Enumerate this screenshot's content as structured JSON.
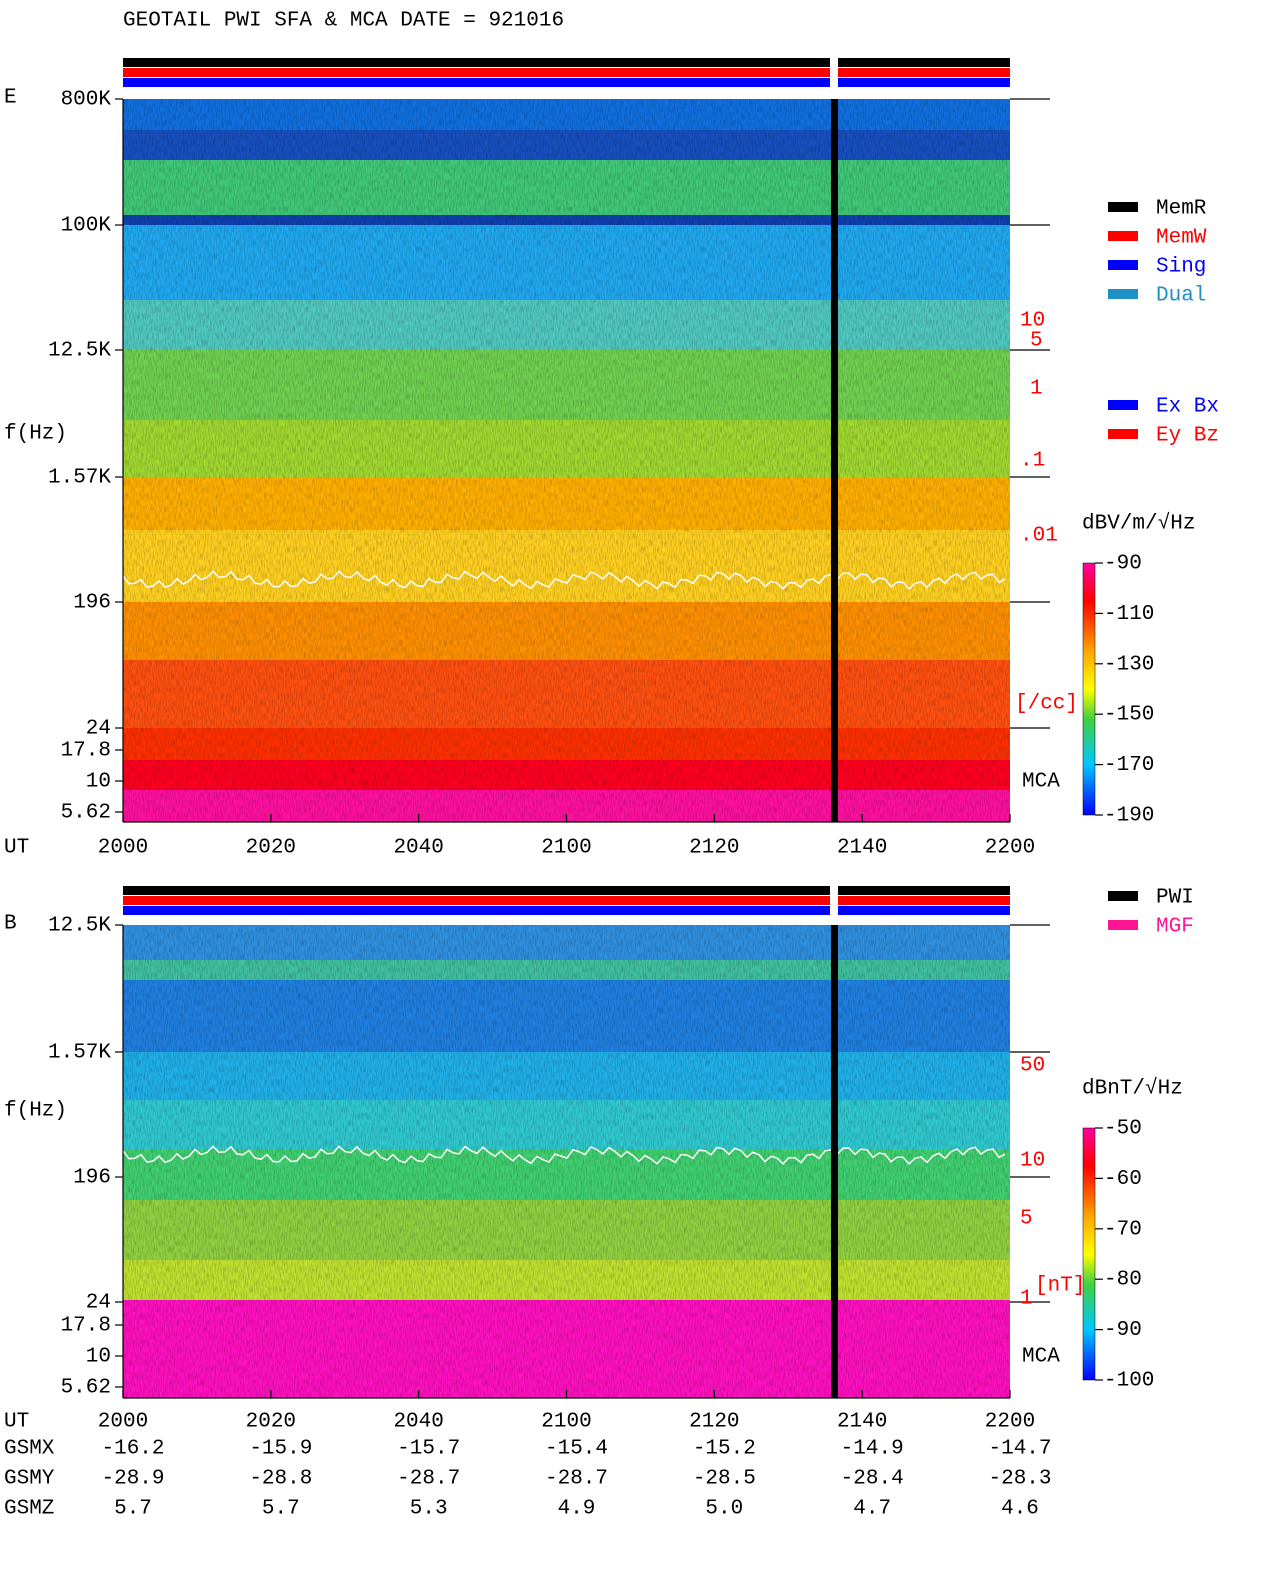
{
  "title": "GEOTAIL  PWI SFA & MCA   DATE = 921016",
  "chart_data": [
    {
      "type": "spectrogram",
      "panel_label": "E",
      "y_label": "f(Hz)",
      "x_label": "UT",
      "x_categories": [
        "2000",
        "2020",
        "2040",
        "2100",
        "2120",
        "2140",
        "2200"
      ],
      "y_tick_labels": [
        "800K",
        "100K",
        "12.5K",
        "1.57K",
        "196",
        "24",
        "17.8",
        "10",
        "5.62"
      ],
      "colorbar_label": "dBV/m/√Hz",
      "colorbar_lim": [
        -90,
        -190
      ],
      "colorbar_ticks": [
        -90,
        -110,
        -130,
        -150,
        -170,
        -190
      ],
      "right_scale_labels": [
        "10",
        "5",
        "1",
        ".1",
        ".01",
        "[/cc]"
      ],
      "mca_label": "MCA",
      "legends": [
        [
          {
            "name": "MemR",
            "color": "#000000"
          },
          {
            "name": "MemW",
            "color": "#ff0000"
          },
          {
            "name": "Sing",
            "color": "#0000ff"
          },
          {
            "name": "Dual",
            "color": "#1e90c8"
          }
        ],
        [
          {
            "name": "Ex Bx",
            "color": "#0000ff"
          },
          {
            "name": "Ey Bz",
            "color": "#ff0000"
          }
        ]
      ]
    },
    {
      "type": "spectrogram",
      "panel_label": "B",
      "y_label": "f(Hz)",
      "x_label": "UT",
      "x_categories": [
        "2000",
        "2020",
        "2040",
        "2100",
        "2120",
        "2140",
        "2200"
      ],
      "y_tick_labels": [
        "12.5K",
        "1.57K",
        "196",
        "24",
        "17.8",
        "10",
        "5.62"
      ],
      "colorbar_label": "dBnT/√Hz",
      "colorbar_lim": [
        -50,
        -100
      ],
      "colorbar_ticks": [
        -50,
        -60,
        -70,
        -80,
        -90,
        -100
      ],
      "right_scale_labels": [
        "50",
        "10",
        "5",
        "1",
        "[nT]"
      ],
      "mca_label": "MCA",
      "legends": [
        [
          {
            "name": "PWI",
            "color": "#000000"
          },
          {
            "name": "MGF",
            "color": "#ff1493"
          }
        ]
      ]
    }
  ],
  "orbit": {
    "rows": [
      {
        "label": "GSMX",
        "values": [
          "-16.2",
          "-15.9",
          "-15.7",
          "-15.4",
          "-15.2",
          "-14.9",
          "-14.7"
        ]
      },
      {
        "label": "GSMY",
        "values": [
          "-28.9",
          "-28.8",
          "-28.7",
          "-28.7",
          "-28.5",
          "-28.4",
          "-28.3"
        ]
      },
      {
        "label": "GSMZ",
        "values": [
          "5.7",
          "5.7",
          "5.3",
          "4.9",
          "5.0",
          "4.7",
          "4.6"
        ]
      }
    ]
  }
}
